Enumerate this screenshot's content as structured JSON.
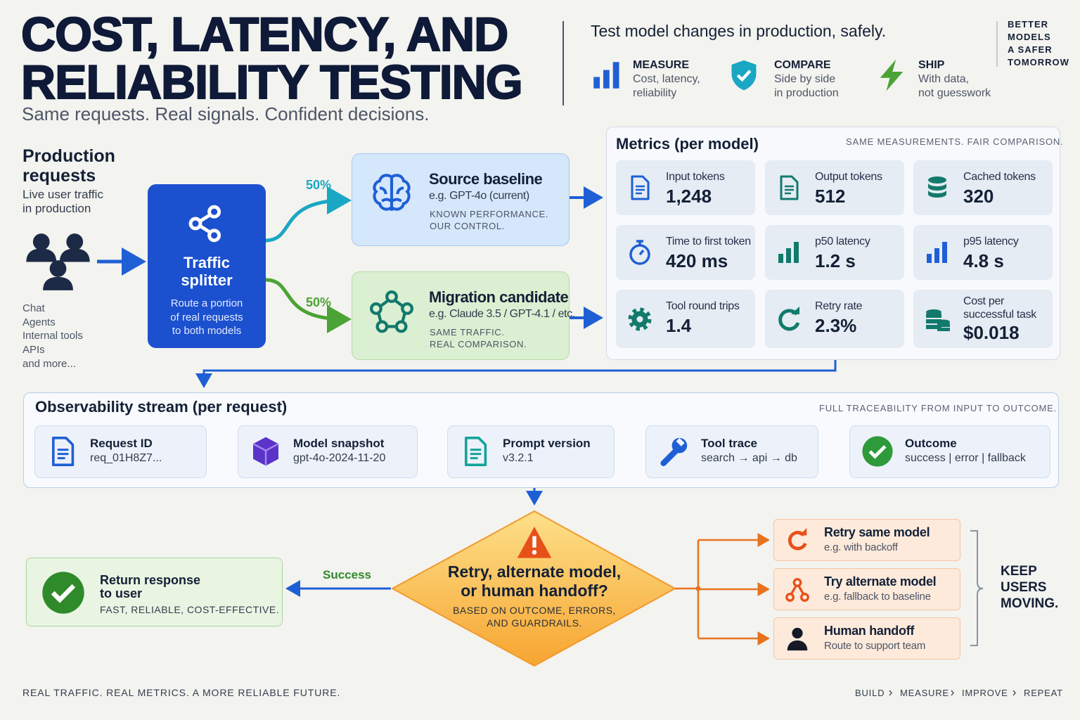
{
  "header": {
    "title": [
      "COST, LATENCY, AND",
      "RELIABILITY TESTING"
    ],
    "subtitle": "Same requests. Real signals. Confident decisions.",
    "tagline": "Test model changes in production, safely.",
    "pillars": [
      {
        "title": "MEASURE",
        "text": [
          "Cost, latency,",
          "reliability"
        ]
      },
      {
        "title": "COMPARE",
        "text": [
          "Side by side",
          "in production"
        ]
      },
      {
        "title": "SHIP",
        "text": [
          "With data,",
          "not guesswork"
        ]
      }
    ],
    "corner": [
      "BETTER",
      "MODELS",
      "A SAFER",
      "TOMORROW"
    ]
  },
  "production": {
    "title": [
      "Production",
      "requests"
    ],
    "text": [
      "Live user traffic",
      "in production"
    ],
    "sources": [
      "Chat",
      "Agents",
      "Internal tools",
      "APIs",
      "and more..."
    ]
  },
  "splitter": {
    "title": [
      "Traffic",
      "splitter"
    ],
    "text": [
      "Route a portion",
      "of real requests",
      "to both models"
    ],
    "shares": [
      "50%",
      "50%"
    ]
  },
  "baseline": {
    "title": "Source baseline",
    "model": "e.g. GPT-4o (current)",
    "note": [
      "KNOWN PERFORMANCE.",
      "OUR CONTROL."
    ]
  },
  "candidate": {
    "title": "Migration candidate",
    "model": "e.g. Claude 3.5 / GPT-4.1 / etc.",
    "note": [
      "SAME TRAFFIC.",
      "REAL COMPARISON."
    ]
  },
  "metrics": {
    "title": "Metrics (per model)",
    "note": "SAME MEASUREMENTS. FAIR COMPARISON.",
    "items": [
      {
        "label": [
          "Input tokens"
        ],
        "value": "1,248"
      },
      {
        "label": [
          "Output tokens"
        ],
        "value": "512"
      },
      {
        "label": [
          "Cached tokens"
        ],
        "value": "320"
      },
      {
        "label": [
          "Time to first token"
        ],
        "value": "420 ms"
      },
      {
        "label": [
          "p50 latency"
        ],
        "value": "1.2 s"
      },
      {
        "label": [
          "p95 latency"
        ],
        "value": "4.8 s"
      },
      {
        "label": [
          "Tool round trips"
        ],
        "value": "1.4"
      },
      {
        "label": [
          "Retry rate"
        ],
        "value": "2.3%"
      },
      {
        "label": [
          "Cost per",
          "successful task"
        ],
        "value": "$0.018"
      }
    ]
  },
  "observability": {
    "title": "Observability stream (per request)",
    "note": "FULL TRACEABILITY FROM INPUT TO OUTCOME.",
    "steps": [
      {
        "label": "Request ID",
        "detail": "req_01H8Z7..."
      },
      {
        "label": "Model snapshot",
        "detail": "gpt-4o-2024-11-20"
      },
      {
        "label": "Prompt version",
        "detail": "v3.2.1"
      },
      {
        "label": "Tool trace",
        "detail": "search → api → db"
      },
      {
        "label": "Outcome",
        "detail": "success | error | fallback"
      }
    ]
  },
  "decision": {
    "title": [
      "Retry, alternate model,",
      "or human handoff?"
    ],
    "note": [
      "BASED ON OUTCOME, ERRORS,",
      "AND GUARDRAILS."
    ],
    "success": "Success"
  },
  "response": {
    "title": [
      "Return response",
      "to user"
    ],
    "note": "FAST, RELIABLE, COST-EFFECTIVE."
  },
  "fallbacks": [
    {
      "title": "Retry same model",
      "detail": "e.g. with backoff"
    },
    {
      "title": "Try alternate model",
      "detail": "e.g. fallback to baseline"
    },
    {
      "title": "Human handoff",
      "detail": "Route to support team"
    }
  ],
  "keep": [
    "KEEP",
    "USERS",
    "MOVING."
  ],
  "footer": {
    "text": "REAL TRAFFIC. REAL METRICS. A MORE RELIABLE FUTURE.",
    "cycle": [
      "BUILD",
      "MEASURE",
      "IMPROVE",
      "REPEAT"
    ]
  }
}
